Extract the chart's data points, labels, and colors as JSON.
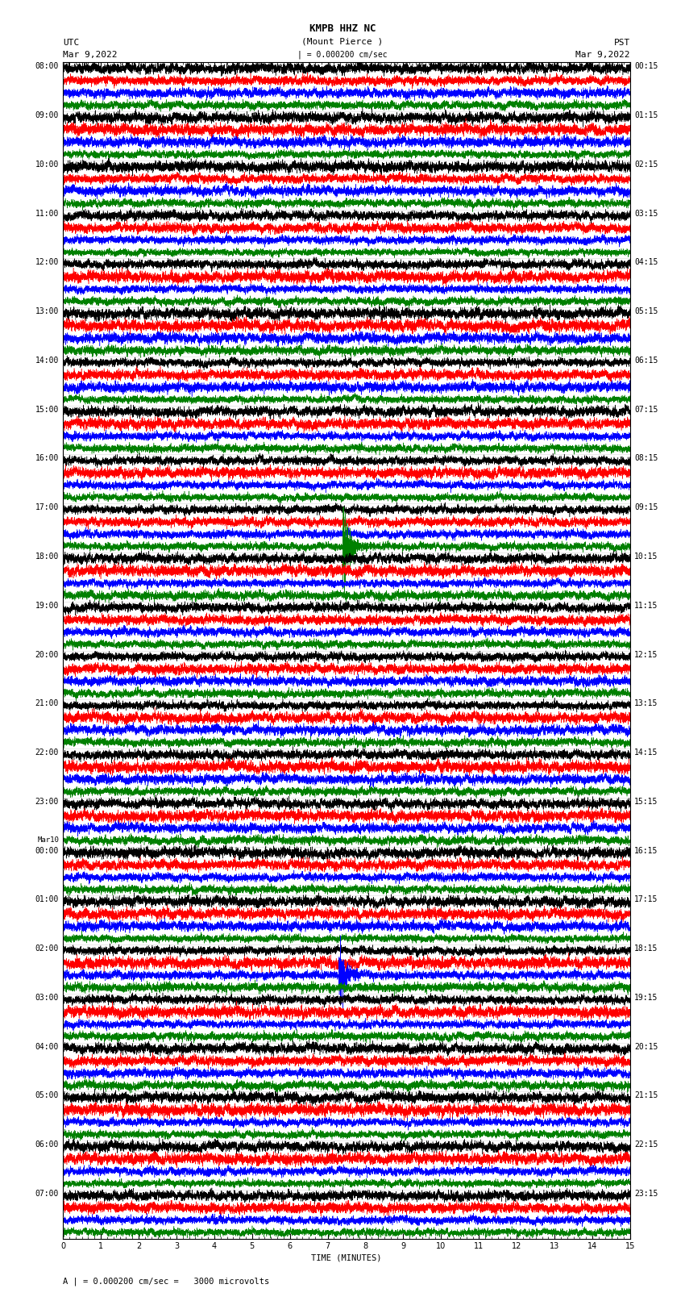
{
  "title_line1": "KMPB HHZ NC",
  "title_line2": "(Mount Pierce )",
  "title_line3": "| = 0.000200 cm/sec",
  "left_header1": "UTC",
  "left_header2": "Mar 9,2022",
  "right_header1": "PST",
  "right_header2": "Mar 9,2022",
  "xlabel": "TIME (MINUTES)",
  "footer": "A | = 0.000200 cm/sec =   3000 microvolts",
  "left_times": [
    "08:00",
    "09:00",
    "10:00",
    "11:00",
    "12:00",
    "13:00",
    "14:00",
    "15:00",
    "16:00",
    "17:00",
    "18:00",
    "19:00",
    "20:00",
    "21:00",
    "22:00",
    "23:00",
    "Mar10\n00:00",
    "01:00",
    "02:00",
    "03:00",
    "04:00",
    "05:00",
    "06:00",
    "07:00"
  ],
  "right_times": [
    "00:15",
    "01:15",
    "02:15",
    "03:15",
    "04:15",
    "05:15",
    "06:15",
    "07:15",
    "08:15",
    "09:15",
    "10:15",
    "11:15",
    "12:15",
    "13:15",
    "14:15",
    "15:15",
    "16:15",
    "17:15",
    "18:15",
    "19:15",
    "20:15",
    "21:15",
    "22:15",
    "23:15"
  ],
  "n_rows": 24,
  "n_traces_per_row": 4,
  "trace_colors": [
    "black",
    "red",
    "blue",
    "green"
  ],
  "fig_width": 8.5,
  "fig_height": 16.13,
  "dpi": 100,
  "xmin": 0,
  "xmax": 15,
  "bgcolor": "white",
  "n_points": 9000,
  "time_fontsize": 7.0,
  "title_fontsize": 9,
  "header_fontsize": 8,
  "footer_fontsize": 7.5,
  "linewidth": 0.35
}
